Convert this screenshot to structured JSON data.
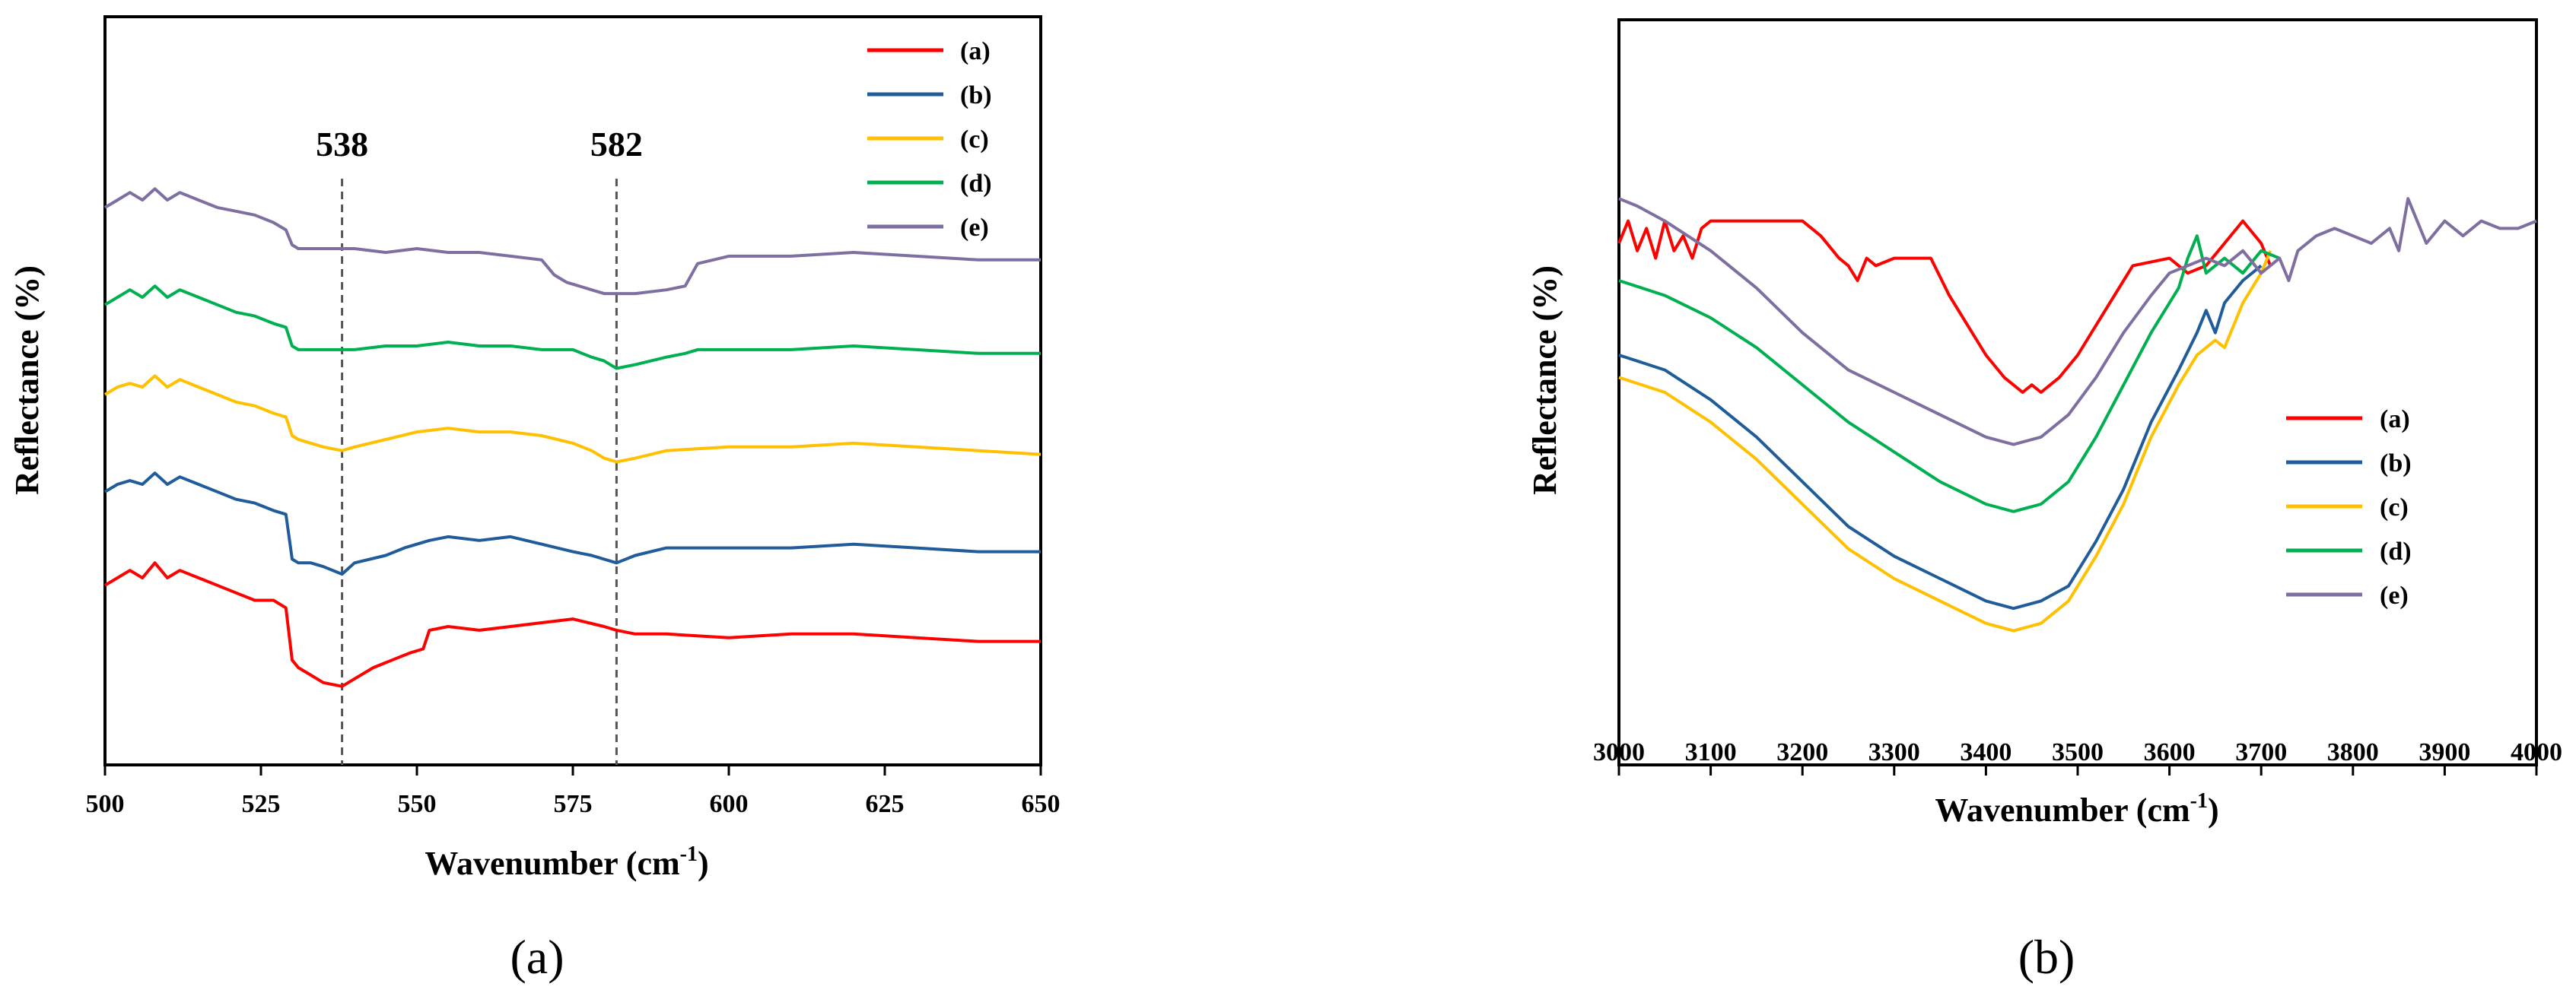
{
  "chart_data": [
    {
      "type": "line",
      "panel": "a",
      "caption_label": "(a)",
      "xlabel": "Wavenumber (cm",
      "xlabel_sup": "-1",
      "xlabel_end": ")",
      "ylabel": "Reflectance (%)",
      "xlim": [
        500,
        650
      ],
      "ylim": [
        0,
        100
      ],
      "xticks": [
        "500",
        "525",
        "550",
        "575",
        "600",
        "625",
        "650"
      ],
      "xtick_values": [
        500,
        525,
        550,
        575,
        600,
        625,
        650
      ],
      "legend_position": "top-right",
      "annotations": [
        {
          "label": "538",
          "x": 538
        },
        {
          "label": "582",
          "x": 582
        }
      ],
      "series": [
        {
          "name": "(a)",
          "color": "#ff0000",
          "x": [
            500,
            502,
            504,
            506,
            508,
            510,
            512,
            515,
            518,
            521,
            524,
            527,
            529,
            530,
            531,
            533,
            535,
            538,
            540,
            543,
            546,
            549,
            551,
            552,
            555,
            560,
            565,
            570,
            575,
            580,
            582,
            585,
            590,
            600,
            610,
            620,
            630,
            640,
            650
          ],
          "y": [
            24,
            25,
            26,
            25,
            27,
            25,
            26,
            25,
            24,
            23,
            22,
            22,
            21,
            14,
            13,
            12,
            11,
            10.5,
            11.5,
            13,
            14,
            15,
            15.5,
            18,
            18.5,
            18,
            18.5,
            19,
            19.5,
            18.5,
            18,
            17.5,
            17.5,
            17,
            17.5,
            17.5,
            17,
            16.5,
            16.5
          ]
        },
        {
          "name": "(b)",
          "color": "#1f5c99",
          "x": [
            500,
            502,
            504,
            506,
            508,
            510,
            512,
            515,
            518,
            521,
            524,
            527,
            529,
            530,
            531,
            533,
            535,
            538,
            540,
            545,
            548,
            552,
            555,
            560,
            565,
            570,
            575,
            578,
            580,
            582,
            585,
            590,
            600,
            610,
            620,
            630,
            640,
            650
          ],
          "y": [
            36.5,
            37.5,
            38,
            37.5,
            39,
            37.5,
            38.5,
            37.5,
            36.5,
            35.5,
            35,
            34,
            33.5,
            27.5,
            27,
            27,
            26.5,
            25.5,
            27,
            28,
            29,
            30,
            30.5,
            30,
            30.5,
            29.5,
            28.5,
            28,
            27.5,
            27,
            28,
            29,
            29,
            29,
            29.5,
            29,
            28.5,
            28.5
          ]
        },
        {
          "name": "(c)",
          "color": "#ffc000",
          "x": [
            500,
            502,
            504,
            506,
            508,
            510,
            512,
            515,
            518,
            521,
            524,
            527,
            529,
            530,
            531,
            533,
            535,
            538,
            540,
            545,
            550,
            555,
            560,
            565,
            570,
            575,
            578,
            580,
            582,
            585,
            590,
            600,
            610,
            620,
            630,
            640,
            650
          ],
          "y": [
            49.5,
            50.5,
            51,
            50.5,
            52,
            50.5,
            51.5,
            50.5,
            49.5,
            48.5,
            48,
            47,
            46.5,
            44,
            43.5,
            43,
            42.5,
            42,
            42.5,
            43.5,
            44.5,
            45,
            44.5,
            44.5,
            44,
            43,
            42,
            41,
            40.5,
            41,
            42,
            42.5,
            42.5,
            43,
            42.5,
            42,
            41.5
          ]
        },
        {
          "name": "(d)",
          "color": "#00b050",
          "x": [
            500,
            502,
            504,
            506,
            508,
            510,
            512,
            515,
            518,
            521,
            524,
            527,
            529,
            530,
            531,
            535,
            540,
            545,
            550,
            555,
            560,
            565,
            570,
            575,
            578,
            580,
            581,
            582,
            585,
            590,
            593,
            595,
            600,
            610,
            620,
            630,
            640,
            650
          ],
          "y": [
            61.5,
            62.5,
            63.5,
            62.5,
            64,
            62.5,
            63.5,
            62.5,
            61.5,
            60.5,
            60,
            59,
            58.5,
            56,
            55.5,
            55.5,
            55.5,
            56,
            56,
            56.5,
            56,
            56,
            55.5,
            55.5,
            54.5,
            54,
            53.5,
            53,
            53.5,
            54.5,
            55,
            55.5,
            55.5,
            55.5,
            56,
            55.5,
            55,
            55
          ]
        },
        {
          "name": "(e)",
          "color": "#7f6fa0",
          "x": [
            500,
            502,
            504,
            506,
            508,
            510,
            512,
            515,
            518,
            521,
            524,
            527,
            529,
            530,
            531,
            535,
            540,
            545,
            550,
            555,
            560,
            565,
            570,
            572,
            574,
            576,
            578,
            580,
            582,
            585,
            590,
            593,
            595,
            600,
            610,
            620,
            630,
            640,
            650
          ],
          "y": [
            74.5,
            75.5,
            76.5,
            75.5,
            77,
            75.5,
            76.5,
            75.5,
            74.5,
            74,
            73.5,
            72.5,
            71.5,
            69.5,
            69,
            69,
            69,
            68.5,
            69,
            68.5,
            68.5,
            68,
            67.5,
            65.5,
            64.5,
            64,
            63.5,
            63,
            63,
            63,
            63.5,
            64,
            67,
            68,
            68,
            68.5,
            68,
            67.5,
            67.5
          ]
        }
      ]
    },
    {
      "type": "line",
      "panel": "b",
      "caption_label": "(b)",
      "xlabel": "Wavenumber (cm",
      "xlabel_sup": "-1",
      "xlabel_end": ")",
      "ylabel": "Reflectance (%)",
      "xlim": [
        3000,
        4000
      ],
      "ylim": [
        0,
        100
      ],
      "xticks": [
        "3000",
        "3100",
        "3200",
        "3300",
        "3400",
        "3500",
        "3600",
        "3700",
        "3800",
        "3900",
        "4000"
      ],
      "xtick_values": [
        3000,
        3100,
        3200,
        3300,
        3400,
        3500,
        3600,
        3700,
        3800,
        3900,
        4000
      ],
      "legend_position": "center-right",
      "series": [
        {
          "name": "(a)",
          "color": "#ff0000",
          "x": [
            3000,
            3010,
            3020,
            3030,
            3040,
            3050,
            3060,
            3070,
            3080,
            3090,
            3100,
            3130,
            3160,
            3200,
            3220,
            3240,
            3250,
            3260,
            3270,
            3280,
            3300,
            3340,
            3360,
            3380,
            3400,
            3420,
            3440,
            3450,
            3460,
            3480,
            3500,
            3530,
            3560,
            3600,
            3620,
            3640,
            3660,
            3680,
            3700,
            3710
          ],
          "y": [
            70,
            73,
            69,
            72,
            68,
            73,
            69,
            71,
            68,
            72,
            73,
            73,
            73,
            73,
            71,
            68,
            67,
            65,
            68,
            67,
            68,
            68,
            63,
            59,
            55,
            52,
            50,
            51,
            50,
            52,
            55,
            61,
            67,
            68,
            66,
            67,
            70,
            73,
            70,
            67
          ]
        },
        {
          "name": "(b)",
          "color": "#1f5c99",
          "x": [
            3000,
            3050,
            3100,
            3150,
            3200,
            3250,
            3300,
            3350,
            3400,
            3430,
            3460,
            3490,
            3520,
            3550,
            3580,
            3610,
            3630,
            3640,
            3650,
            3660,
            3680,
            3700
          ],
          "y": [
            55,
            53,
            49,
            44,
            38,
            32,
            28,
            25,
            22,
            21,
            22,
            24,
            30,
            37,
            46,
            53,
            58,
            61,
            58,
            62,
            65,
            67
          ]
        },
        {
          "name": "(c)",
          "color": "#ffc000",
          "x": [
            3000,
            3050,
            3100,
            3150,
            3200,
            3250,
            3300,
            3350,
            3400,
            3430,
            3460,
            3490,
            3520,
            3550,
            3580,
            3610,
            3630,
            3650,
            3660,
            3680,
            3700,
            3710
          ],
          "y": [
            52,
            50,
            46,
            41,
            35,
            29,
            25,
            22,
            19,
            18,
            19,
            22,
            28,
            35,
            44,
            51,
            55,
            57,
            56,
            62,
            66,
            69
          ]
        },
        {
          "name": "(d)",
          "color": "#00b050",
          "x": [
            3000,
            3050,
            3100,
            3150,
            3200,
            3250,
            3300,
            3350,
            3400,
            3430,
            3460,
            3490,
            3520,
            3550,
            3580,
            3600,
            3610,
            3620,
            3630,
            3640,
            3660,
            3680,
            3700,
            3720
          ],
          "y": [
            65,
            63,
            60,
            56,
            51,
            46,
            42,
            38,
            35,
            34,
            35,
            38,
            44,
            51,
            58,
            62,
            64,
            68,
            71,
            66,
            68,
            66,
            69,
            68
          ]
        },
        {
          "name": "(e)",
          "color": "#7f6fa0",
          "x": [
            3000,
            3020,
            3050,
            3100,
            3150,
            3200,
            3250,
            3300,
            3350,
            3400,
            3430,
            3460,
            3490,
            3520,
            3550,
            3580,
            3600,
            3620,
            3640,
            3660,
            3680,
            3700,
            3720,
            3730,
            3740,
            3760,
            3780,
            3800,
            3820,
            3840,
            3850,
            3860,
            3880,
            3900,
            3920,
            3940,
            3960,
            3980,
            4000
          ],
          "y": [
            76,
            75,
            73,
            69,
            64,
            58,
            53,
            50,
            47,
            44,
            43,
            44,
            47,
            52,
            58,
            63,
            66,
            67,
            68,
            67,
            69,
            66,
            68,
            65,
            69,
            71,
            72,
            71,
            70,
            72,
            69,
            76,
            70,
            73,
            71,
            73,
            72,
            72,
            73
          ]
        }
      ]
    }
  ]
}
